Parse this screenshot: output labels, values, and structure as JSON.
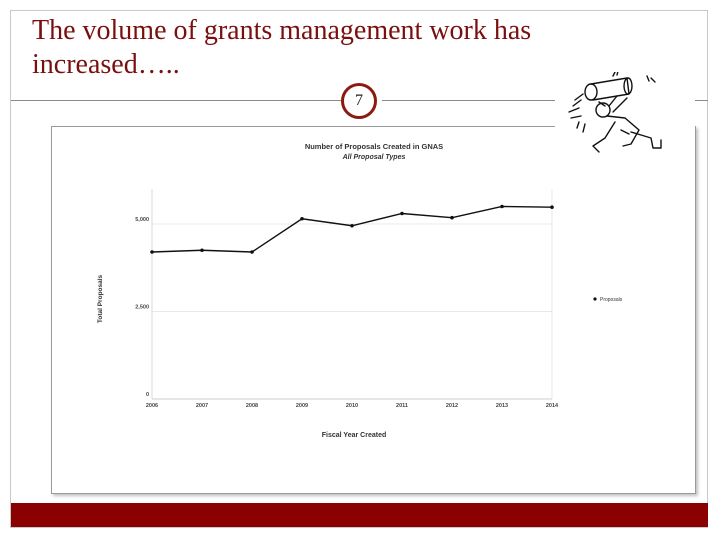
{
  "slide": {
    "title": "The volume of grants management work has increased…..",
    "page_number": "7"
  },
  "colors": {
    "title": "#7a0f0f",
    "accent_bar": "#8b0000",
    "badge_border": "#8b1a10",
    "series_line": "#111111"
  },
  "chart_data": {
    "type": "line",
    "title": "Number of Proposals Created in GNAS",
    "subtitle": "All Proposal Types",
    "xlabel": "Fiscal Year Created",
    "ylabel": "Total Proposals",
    "categories": [
      "2006",
      "2007",
      "2008",
      "2009",
      "2010",
      "2011",
      "2012",
      "2013",
      "2014"
    ],
    "series": [
      {
        "name": "Proposals",
        "values": [
          4200,
          4250,
          4200,
          5150,
          4950,
          5300,
          5180,
          5500,
          5480
        ]
      }
    ],
    "ylim": [
      0,
      6000
    ],
    "yticks": [
      0,
      2500,
      5000
    ],
    "ytick_labels": [
      "0",
      "2,500",
      "5,000"
    ],
    "grid": true,
    "legend_position": "right"
  }
}
